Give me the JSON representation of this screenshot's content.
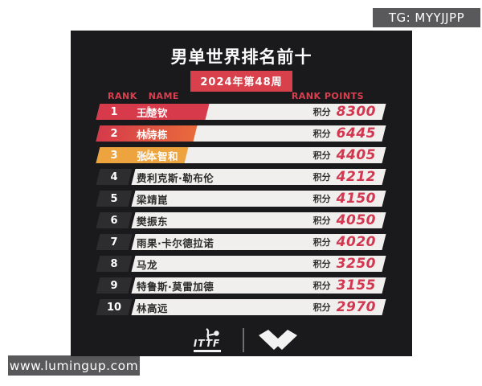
{
  "page": {
    "background": "#ffffff"
  },
  "overlays": {
    "tg_badge": "TG: MYYJJPP",
    "site_badge": "www.lumingup.com",
    "badge_bg": "#59595b"
  },
  "card": {
    "background": "#1a1a1c",
    "title": "男单世界排名前十",
    "week_badge": "2024年第48周",
    "accent_red": "#d8414b"
  },
  "table": {
    "headers": {
      "rank": "RANK",
      "name": "NAME",
      "points": "RANK POINTS"
    },
    "points_label": "积分",
    "points_color": "#d23750",
    "row_bg": "#f0efed",
    "rows": [
      {
        "rank": "1",
        "name": "王楚钦",
        "points": "8300",
        "highlight": true,
        "accent": "#d73a4b",
        "accent_width": 136
      },
      {
        "rank": "2",
        "name": "林诗栋",
        "points": "6445",
        "highlight": true,
        "accent": "linear-gradient(90deg,#d53a4a,#e96a3c)",
        "accent_width": 121
      },
      {
        "rank": "3",
        "name": "张本智和",
        "points": "4405",
        "highlight": true,
        "accent": "#eda43f",
        "accent_width": 110
      },
      {
        "rank": "4",
        "name": "费利克斯·勒布伦",
        "points": "4212",
        "highlight": false
      },
      {
        "rank": "5",
        "name": "梁靖崑",
        "points": "4150",
        "highlight": false
      },
      {
        "rank": "6",
        "name": "樊振东",
        "points": "4050",
        "highlight": false
      },
      {
        "rank": "7",
        "name": "雨果·卡尔德拉诺",
        "points": "4020",
        "highlight": false
      },
      {
        "rank": "8",
        "name": "马龙",
        "points": "3250",
        "highlight": false
      },
      {
        "rank": "9",
        "name": "特鲁斯·莫雷加德",
        "points": "3155",
        "highlight": false
      },
      {
        "rank": "10",
        "name": "林高远",
        "points": "2970",
        "highlight": false
      }
    ]
  },
  "footer": {
    "ittf_word": "ITTF",
    "logos": [
      "ittf-logo",
      "victor-wing-logo"
    ]
  },
  "chart_data": {
    "type": "table",
    "title": "男单世界排名前十",
    "subtitle": "2024年第48周",
    "columns": [
      "RANK",
      "NAME",
      "RANK POINTS"
    ],
    "rows": [
      [
        1,
        "王楚钦",
        8300
      ],
      [
        2,
        "林诗栋",
        6445
      ],
      [
        3,
        "张本智和",
        4405
      ],
      [
        4,
        "费利克斯·勒布伦",
        4212
      ],
      [
        5,
        "梁靖崑",
        4150
      ],
      [
        6,
        "樊振东",
        4050
      ],
      [
        7,
        "雨果·卡尔德拉诺",
        4020
      ],
      [
        8,
        "马龙",
        3250
      ],
      [
        9,
        "特鲁斯·莫雷加德",
        3155
      ],
      [
        10,
        "林高远",
        2970
      ]
    ],
    "notes": "top 3 rows highlighted: 1 red, 2 red-orange gradient, 3 orange"
  }
}
